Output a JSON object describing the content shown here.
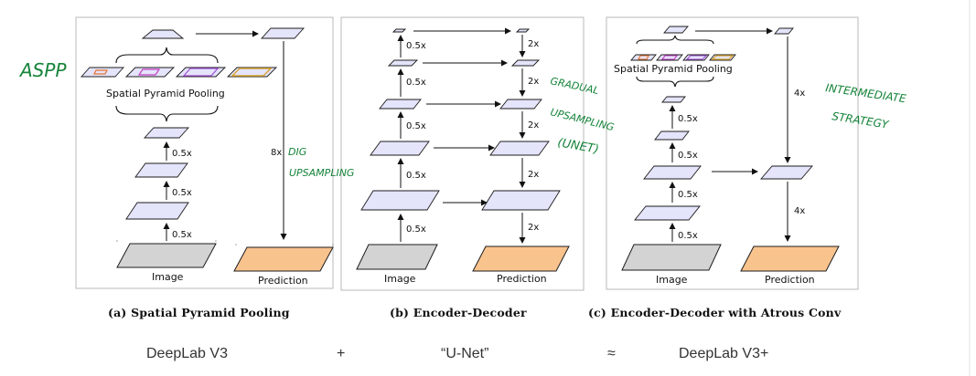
{
  "panels": [
    {
      "image_label": "Image",
      "prediction_label": "Prediction",
      "pooling_label": "Spatial Pyramid Pooling",
      "scale_labels": [
        "0.5x",
        "0.5x",
        "0.5x"
      ],
      "upsample_label": "8x",
      "caption": "(a) Spatial Pyramid Pooling"
    },
    {
      "image_label": "Image",
      "prediction_label": "Prediction",
      "down_labels": [
        "0.5x",
        "0.5x",
        "0.5x",
        "0.5x",
        "0.5x"
      ],
      "up_labels": [
        "2x",
        "2x",
        "2x",
        "2x",
        "2x"
      ],
      "caption": "(b) Encoder-Decoder"
    },
    {
      "image_label": "Image",
      "prediction_label": "Prediction",
      "pooling_label": "Spatial Pyramid Pooling",
      "down_labels": [
        "0.5x",
        "0.5x",
        "0.5x",
        "0.5x"
      ],
      "up_labels": [
        "4x",
        "4x"
      ],
      "caption": "(c) Encoder-Decoder with Atrous Conv"
    }
  ],
  "annotations": {
    "aspp": "ASPP",
    "big_upsampling": [
      "DIG",
      "UPSAMPLING"
    ],
    "gradual_upsampling": [
      "GRADUAL",
      "UPSAMPLING",
      "(UNET)"
    ],
    "intermediate_strategy": [
      "INTERMEDIATE",
      "STRATEGY"
    ]
  },
  "equation": {
    "left": "DeepLab V3",
    "plus": "+",
    "middle": "“U-Net”",
    "approx": "≈",
    "right": "DeepLab V3+"
  },
  "colors": {
    "feature_map": "#e4e4fb",
    "image": "#d3d3d3",
    "prediction": "#f9c38e",
    "annotation_ink": "#16843a",
    "pool_orange": "#e8732a",
    "pool_magenta": "#c43fc4",
    "pool_violet": "#a24fd6",
    "pool_gold": "#d9a531"
  }
}
